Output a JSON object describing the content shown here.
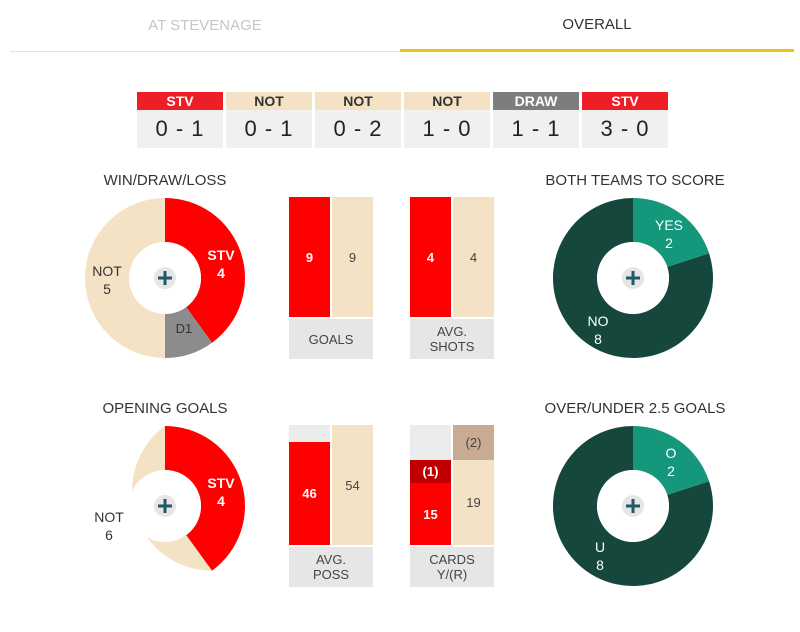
{
  "tabs": [
    {
      "label": "AT STEVENAGE",
      "active": false
    },
    {
      "label": "OVERALL",
      "active": true
    }
  ],
  "recent_results": [
    {
      "team": "STV",
      "score": "0 - 1",
      "type": "stv"
    },
    {
      "team": "NOT",
      "score": "0 - 1",
      "type": "not"
    },
    {
      "team": "NOT",
      "score": "0 - 2",
      "type": "not"
    },
    {
      "team": "NOT",
      "score": "1 - 0",
      "type": "not"
    },
    {
      "team": "DRAW",
      "score": "1 - 1",
      "type": "draw"
    },
    {
      "team": "STV",
      "score": "3 - 0",
      "type": "stv"
    }
  ],
  "colors": {
    "stv": "#ff0000",
    "not": "#f4e2c4",
    "draw": "#8c8c8c",
    "btts_yes": "#14977a",
    "btts_no": "#16473d",
    "accent": "#f1c40f"
  },
  "win_draw_loss": {
    "title": "WIN/DRAW/LOSS",
    "stv": {
      "label": "STV",
      "value": "4"
    },
    "draw": {
      "label": "D",
      "value": "1"
    },
    "not": {
      "label": "NOT",
      "value": "5"
    },
    "center_icon": "plus-icon"
  },
  "both_teams_to_score": {
    "title": "BOTH TEAMS TO SCORE",
    "yes": {
      "label": "YES",
      "value": "2"
    },
    "no": {
      "label": "NO",
      "value": "8"
    },
    "center_icon": "plus-icon"
  },
  "opening_goals": {
    "title": "OPENING GOALS",
    "stv": {
      "label": "STV",
      "value": "4"
    },
    "not": {
      "label": "NOT",
      "value": "6"
    },
    "center_icon": "plus-icon"
  },
  "over_under": {
    "title": "OVER/UNDER 2.5 GOALS",
    "over": {
      "label": "O",
      "value": "2"
    },
    "under": {
      "label": "U",
      "value": "8"
    },
    "center_icon": "plus-icon"
  },
  "bars": {
    "goals": {
      "label": "GOALS",
      "stv": "9",
      "not": "9"
    },
    "avg_shots": {
      "label": "AVG. SHOTS",
      "stv": "4",
      "not": "4"
    },
    "avg_poss": {
      "label": "AVG. POSS",
      "stv": "46",
      "not": "54"
    },
    "cards": {
      "label": "CARDS Y/(R)",
      "stv_yellow": "15",
      "stv_red": "(1)",
      "not_yellow": "19",
      "not_red": "(2)"
    }
  }
}
